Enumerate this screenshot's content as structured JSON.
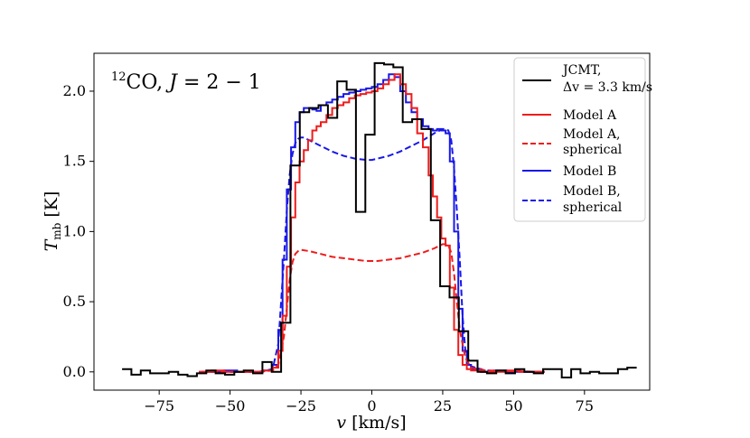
{
  "chart_data": {
    "type": "line",
    "title": "",
    "annotation": {
      "prefix": "12",
      "species": "CO, ",
      "transition_var": "J",
      "transition_value": " = 2 − 1"
    },
    "xlabel": {
      "var": "v",
      "unit": " [km/s]"
    },
    "ylabel": {
      "var": "T",
      "sub": "mb",
      "unit": " [K]"
    },
    "xlim": [
      -98,
      98
    ],
    "ylim": [
      -0.13,
      2.27
    ],
    "xticks": [
      -75,
      -50,
      -25,
      0,
      25,
      50,
      75
    ],
    "xtick_labels": [
      "−75",
      "−50",
      "−25",
      "0",
      "25",
      "50",
      "75"
    ],
    "yticks": [
      0.0,
      0.5,
      1.0,
      1.5,
      2.0
    ],
    "ytick_labels": [
      "0.0",
      "0.5",
      "1.0",
      "1.5",
      "2.0"
    ],
    "grid": false,
    "legend_position": "top-right",
    "series": [
      {
        "name": "JCMT, Δv = 3.3 km/s",
        "legend_line1": "JCMT,",
        "legend_line2": "Δv = 3.3 km/s",
        "color": "#000000",
        "style": "solid",
        "step": true,
        "x": [
          -88.1,
          -84.8,
          -81.5,
          -78.2,
          -74.9,
          -71.6,
          -68.3,
          -65.0,
          -61.7,
          -58.4,
          -55.1,
          -51.8,
          -48.5,
          -45.2,
          -41.9,
          -38.6,
          -35.3,
          -32.0,
          -28.7,
          -25.4,
          -22.1,
          -18.8,
          -15.5,
          -12.2,
          -8.9,
          -5.6,
          -2.3,
          1.0,
          4.3,
          7.6,
          10.9,
          14.2,
          17.5,
          20.8,
          24.1,
          27.4,
          30.7,
          34.0,
          37.3,
          40.6,
          43.9,
          47.2,
          50.5,
          53.8,
          57.1,
          60.4,
          63.7,
          67.0,
          70.3,
          73.6,
          76.9,
          80.2,
          83.5,
          86.8,
          90.1
        ],
        "y": [
          0.02,
          -0.02,
          0.01,
          -0.01,
          -0.01,
          0.0,
          -0.02,
          -0.03,
          -0.01,
          0.01,
          -0.01,
          -0.02,
          0.0,
          0.01,
          -0.01,
          0.07,
          0.0,
          0.35,
          1.47,
          1.85,
          1.88,
          1.9,
          1.81,
          2.07,
          2.01,
          1.14,
          1.69,
          2.2,
          2.19,
          2.17,
          1.78,
          1.8,
          1.73,
          1.08,
          0.61,
          0.53,
          0.29,
          0.08,
          0.0,
          -0.01,
          0.01,
          -0.01,
          0.02,
          0.0,
          -0.01,
          0.02,
          0.02,
          -0.04,
          0.02,
          -0.01,
          0.0,
          -0.01,
          -0.01,
          0.02,
          0.03
        ]
      },
      {
        "name": "Model A",
        "legend_line1": "Model A",
        "color": "#ee1c1c",
        "style": "solid",
        "step": true,
        "x": [
          -61.0,
          -56.5,
          -52.0,
          -47.5,
          -43.0,
          -38.5,
          -35.0,
          -33.0,
          -31.5,
          -30.0,
          -28.5,
          -27.0,
          -25.5,
          -24.0,
          -22.5,
          -21.0,
          -19.5,
          -18.0,
          -16.0,
          -14.0,
          -12.0,
          -10.0,
          -8.0,
          -6.0,
          -4.0,
          -2.0,
          0.0,
          2.0,
          4.0,
          6.0,
          8.0,
          10.0,
          12.0,
          14.0,
          16.0,
          18.0,
          20.0,
          21.5,
          23.0,
          24.5,
          26.0,
          27.5,
          29.0,
          30.5,
          32.0,
          33.5,
          35.0,
          38.5,
          43.0,
          47.5,
          52.0,
          56.5
        ],
        "y": [
          0.0,
          0.01,
          0.0,
          0.0,
          0.0,
          0.01,
          0.03,
          0.15,
          0.4,
          0.75,
          1.1,
          1.35,
          1.5,
          1.58,
          1.65,
          1.72,
          1.75,
          1.78,
          1.83,
          1.88,
          1.9,
          1.92,
          1.95,
          1.97,
          1.98,
          1.99,
          2.0,
          2.02,
          2.05,
          2.08,
          2.12,
          2.05,
          1.98,
          1.88,
          1.7,
          1.6,
          1.4,
          1.25,
          1.1,
          0.95,
          0.9,
          0.6,
          0.3,
          0.12,
          0.05,
          0.02,
          0.01,
          0.0,
          0.0,
          0.01,
          0.0,
          0.0
        ]
      },
      {
        "name": "Model A, spherical",
        "legend_line1": "Model A,",
        "legend_line2": "spherical",
        "color": "#ee1c1c",
        "style": "dashed",
        "step": false,
        "x": [
          -60,
          -40,
          -35,
          -33,
          -31,
          -30,
          -29,
          -28,
          -27,
          -26,
          -25,
          -22,
          -18,
          -14,
          -10,
          -6,
          -2,
          0,
          2,
          6,
          10,
          14,
          18,
          22,
          25,
          26,
          27,
          28,
          29,
          30,
          31,
          33,
          35,
          40,
          60
        ],
        "y": [
          0.0,
          0.0,
          0.01,
          0.05,
          0.25,
          0.45,
          0.65,
          0.78,
          0.84,
          0.86,
          0.87,
          0.86,
          0.84,
          0.82,
          0.81,
          0.8,
          0.79,
          0.79,
          0.79,
          0.8,
          0.81,
          0.83,
          0.85,
          0.88,
          0.91,
          0.91,
          0.9,
          0.85,
          0.7,
          0.5,
          0.3,
          0.1,
          0.03,
          0.01,
          0.0
        ]
      },
      {
        "name": "Model B",
        "legend_line1": "Model B",
        "color": "#1818e8",
        "style": "solid",
        "step": true,
        "x": [
          -61.0,
          -56.5,
          -52.0,
          -47.5,
          -43.0,
          -38.5,
          -35.0,
          -33.0,
          -31.5,
          -30.0,
          -28.5,
          -27.0,
          -25.5,
          -24.0,
          -22.5,
          -21.0,
          -19.5,
          -18.0,
          -16.0,
          -14.0,
          -12.0,
          -10.0,
          -8.0,
          -6.0,
          -4.0,
          -2.0,
          0.0,
          2.0,
          4.0,
          6.0,
          8.0,
          10.0,
          12.0,
          14.0,
          16.0,
          18.0,
          20.0,
          21.5,
          23.0,
          24.5,
          26.0,
          27.5,
          29.0,
          30.5,
          32.0,
          33.5,
          35.0,
          38.5,
          43.0,
          47.5,
          52.0,
          56.5
        ],
        "y": [
          0.0,
          0.0,
          0.01,
          0.0,
          0.0,
          0.01,
          0.05,
          0.3,
          0.8,
          1.3,
          1.6,
          1.78,
          1.85,
          1.88,
          1.88,
          1.87,
          1.86,
          1.9,
          1.92,
          1.94,
          1.96,
          1.98,
          1.99,
          2.0,
          2.01,
          2.02,
          2.03,
          2.05,
          2.08,
          2.12,
          2.1,
          2.0,
          1.92,
          1.85,
          1.8,
          1.75,
          1.73,
          1.72,
          1.73,
          1.72,
          1.7,
          1.5,
          1.0,
          0.45,
          0.15,
          0.05,
          0.02,
          0.0,
          0.01,
          0.0,
          0.0,
          0.0
        ]
      },
      {
        "name": "Model B, spherical",
        "legend_line1": "Model B,",
        "legend_line2": "spherical",
        "color": "#1818e8",
        "style": "dashed",
        "step": false,
        "x": [
          -60,
          -40,
          -35,
          -33,
          -31,
          -30,
          -29,
          -28,
          -27,
          -26,
          -25,
          -24,
          -22,
          -18,
          -14,
          -10,
          -6,
          -2,
          0,
          2,
          6,
          10,
          14,
          18,
          22,
          25,
          26,
          27,
          28,
          29,
          30,
          31,
          32,
          33,
          35,
          40,
          60
        ],
        "y": [
          0.0,
          0.0,
          0.02,
          0.2,
          0.8,
          1.15,
          1.4,
          1.55,
          1.63,
          1.66,
          1.67,
          1.67,
          1.65,
          1.61,
          1.57,
          1.54,
          1.52,
          1.51,
          1.51,
          1.52,
          1.54,
          1.57,
          1.61,
          1.65,
          1.7,
          1.73,
          1.73,
          1.72,
          1.65,
          1.45,
          1.15,
          0.8,
          0.4,
          0.15,
          0.04,
          0.01,
          0.0
        ]
      }
    ]
  }
}
